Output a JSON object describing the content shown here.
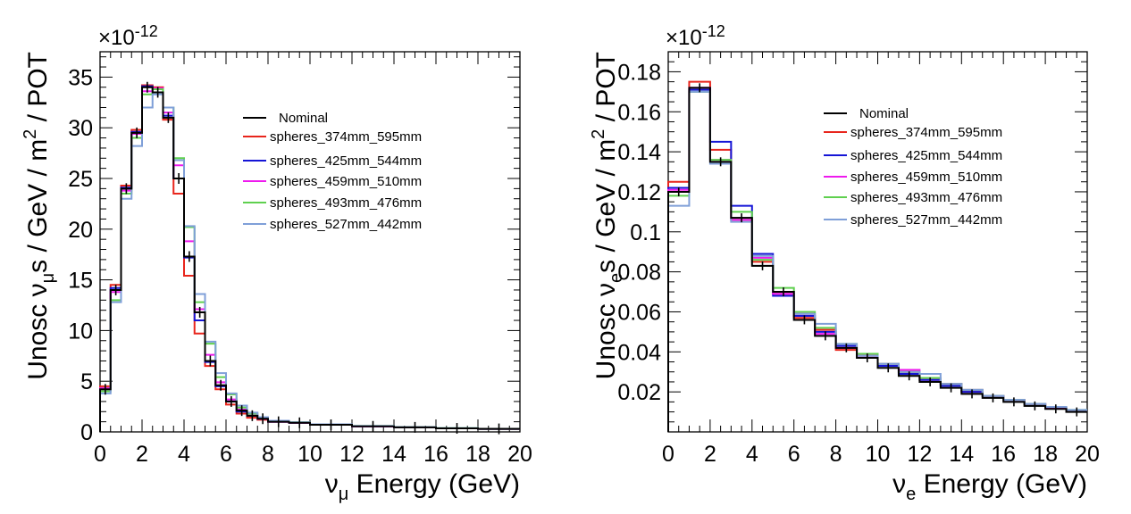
{
  "chart_data": [
    {
      "type": "line",
      "style": "step-histogram",
      "title": "",
      "xlabel": {
        "main": "ν",
        "sub": "μ",
        "rest": " Energy (GeV)"
      },
      "ylabel": {
        "pre": "Unosc ν",
        "sub": "μ",
        "mid": "s / GeV / m",
        "sup": "2",
        "post": " / POT"
      },
      "exponent": {
        "base": "×10",
        "power": "-12"
      },
      "xlim": [
        0,
        20
      ],
      "ylim": [
        0,
        37.5
      ],
      "xticks": [
        "0",
        "2",
        "4",
        "6",
        "8",
        "10",
        "12",
        "14",
        "16",
        "18",
        "20"
      ],
      "yticks": [
        "0",
        "5",
        "10",
        "15",
        "20",
        "25",
        "30",
        "35"
      ],
      "bin_edges": [
        0,
        0.5,
        1,
        1.5,
        2,
        2.5,
        3,
        3.5,
        4,
        4.5,
        5,
        5.5,
        6,
        6.5,
        7,
        7.5,
        8,
        9,
        10,
        12,
        14,
        16,
        18,
        20
      ],
      "series": [
        {
          "name": "Nominal",
          "color": "#000000",
          "values": [
            4.2,
            14.0,
            24.0,
            29.5,
            34.0,
            33.5,
            31.0,
            25.0,
            17.3,
            11.8,
            7.0,
            4.6,
            3.0,
            2.1,
            1.6,
            1.3,
            1.0,
            0.9,
            0.7,
            0.55,
            0.45,
            0.35,
            0.3
          ]
        },
        {
          "name": "spheres_374mm_595mm",
          "color": "#e8251c",
          "values": [
            4.5,
            14.5,
            24.3,
            29.8,
            34.2,
            34.0,
            30.8,
            23.5,
            15.4,
            9.7,
            6.5,
            4.2,
            2.7,
            1.8,
            1.4,
            1.2,
            1.0,
            0.9,
            0.7,
            0.55,
            0.45,
            0.35,
            0.3
          ]
        },
        {
          "name": "spheres_425mm_544mm",
          "color": "#1515d6",
          "values": [
            4.3,
            14.2,
            24.1,
            29.6,
            34.1,
            33.8,
            31.2,
            25.0,
            17.2,
            11.0,
            6.9,
            4.5,
            3.0,
            2.0,
            1.6,
            1.3,
            1.0,
            0.9,
            0.7,
            0.55,
            0.45,
            0.35,
            0.3
          ]
        },
        {
          "name": "spheres_459mm_510mm",
          "color": "#ee1aee",
          "values": [
            4.3,
            13.8,
            23.8,
            29.4,
            33.6,
            33.9,
            31.5,
            26.3,
            18.8,
            12.1,
            7.6,
            4.9,
            3.2,
            2.2,
            1.6,
            1.3,
            1.0,
            0.9,
            0.7,
            0.55,
            0.45,
            0.35,
            0.3
          ]
        },
        {
          "name": "spheres_493mm_476mm",
          "color": "#5fd04f",
          "values": [
            4.0,
            13.0,
            23.5,
            29.0,
            33.3,
            33.8,
            32.0,
            27.0,
            20.2,
            12.8,
            8.7,
            5.4,
            3.7,
            2.4,
            1.8,
            1.4,
            1.1,
            0.95,
            0.75,
            0.58,
            0.47,
            0.37,
            0.3
          ]
        },
        {
          "name": "spheres_527mm_442mm",
          "color": "#7f9fd8",
          "values": [
            3.8,
            12.8,
            23.0,
            28.2,
            32.0,
            33.3,
            32.0,
            26.8,
            20.3,
            13.6,
            8.9,
            5.8,
            3.8,
            2.6,
            1.9,
            1.45,
            1.1,
            0.95,
            0.75,
            0.58,
            0.47,
            0.37,
            0.3
          ]
        }
      ],
      "nominal_error_bars": true
    },
    {
      "type": "line",
      "style": "step-histogram",
      "title": "",
      "xlabel": {
        "main": "ν",
        "sub": "e",
        "rest": " Energy (GeV)"
      },
      "ylabel": {
        "pre": "Unosc ν",
        "sub": "e",
        "mid": "s / GeV / m",
        "sup": "2",
        "post": " / POT"
      },
      "exponent": {
        "base": "×10",
        "power": "-12"
      },
      "xlim": [
        0,
        20
      ],
      "ylim": [
        0,
        0.19
      ],
      "xticks": [
        "0",
        "2",
        "4",
        "6",
        "8",
        "10",
        "12",
        "14",
        "16",
        "18",
        "20"
      ],
      "yticks": [
        "0.02",
        "0.04",
        "0.06",
        "0.08",
        "0.1",
        "0.12",
        "0.14",
        "0.16",
        "0.18"
      ],
      "bin_edges": [
        0,
        1,
        2,
        3,
        4,
        5,
        6,
        7,
        8,
        9,
        10,
        11,
        12,
        13,
        14,
        15,
        16,
        17,
        18,
        19,
        20
      ],
      "series": [
        {
          "name": "Nominal",
          "color": "#000000",
          "values": [
            0.12,
            0.172,
            0.135,
            0.107,
            0.083,
            0.07,
            0.056,
            0.048,
            0.042,
            0.037,
            0.032,
            0.028,
            0.025,
            0.022,
            0.019,
            0.017,
            0.015,
            0.013,
            0.0115,
            0.01
          ]
        },
        {
          "name": "spheres_374mm_595mm",
          "color": "#e8251c",
          "values": [
            0.125,
            0.175,
            0.141,
            0.106,
            0.085,
            0.069,
            0.057,
            0.051,
            0.041,
            0.038,
            0.033,
            0.03,
            0.026,
            0.024,
            0.02,
            0.018,
            0.016,
            0.014,
            0.012,
            0.0105
          ]
        },
        {
          "name": "spheres_425mm_544mm",
          "color": "#1515d6",
          "values": [
            0.122,
            0.171,
            0.145,
            0.113,
            0.089,
            0.068,
            0.058,
            0.05,
            0.043,
            0.037,
            0.033,
            0.029,
            0.026,
            0.023,
            0.02,
            0.018,
            0.016,
            0.014,
            0.012,
            0.0105
          ]
        },
        {
          "name": "spheres_459mm_510mm",
          "color": "#ee1aee",
          "values": [
            0.121,
            0.172,
            0.136,
            0.106,
            0.087,
            0.069,
            0.059,
            0.049,
            0.042,
            0.038,
            0.034,
            0.031,
            0.027,
            0.024,
            0.021,
            0.018,
            0.016,
            0.014,
            0.012,
            0.0105
          ]
        },
        {
          "name": "spheres_493mm_476mm",
          "color": "#5fd04f",
          "values": [
            0.118,
            0.17,
            0.136,
            0.11,
            0.086,
            0.072,
            0.06,
            0.052,
            0.044,
            0.039,
            0.034,
            0.03,
            0.027,
            0.024,
            0.021,
            0.018,
            0.016,
            0.014,
            0.0125,
            0.011
          ]
        },
        {
          "name": "spheres_527mm_442mm",
          "color": "#7f9fd8",
          "values": [
            0.113,
            0.17,
            0.134,
            0.105,
            0.088,
            0.07,
            0.059,
            0.054,
            0.044,
            0.038,
            0.034,
            0.03,
            0.029,
            0.024,
            0.021,
            0.018,
            0.016,
            0.014,
            0.0125,
            0.011
          ]
        }
      ],
      "nominal_error_bars": true
    }
  ]
}
